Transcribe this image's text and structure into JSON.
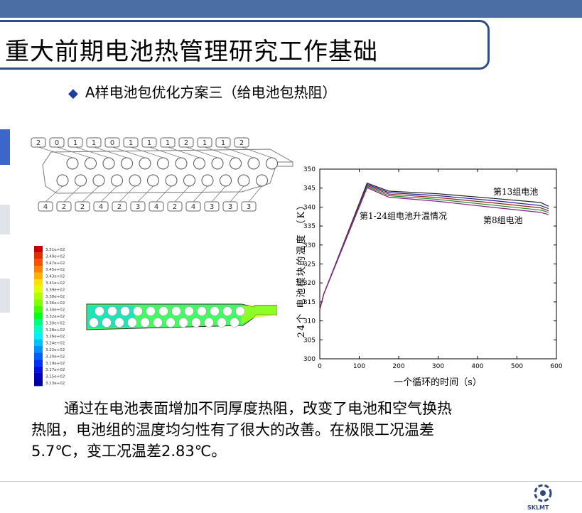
{
  "slide": {
    "title": "重大前期电池热管理研究工作基础",
    "subtitle": "A样电池包优化方案三（给电池包热阻）",
    "body_line1": "通过在电池表面增加不同厚度热阻，改变了电池和空气换热",
    "body_line2": "热阻，电池组的温度均匀性有了很大的改善。在极限工况温差",
    "body_line3": "5.7℃，变工况温差2.83℃。",
    "logo_text": "SKLMT"
  },
  "diagram": {
    "top_labels": [
      "2",
      "0",
      "1",
      "1",
      "0",
      "1",
      "1",
      "1",
      "2",
      "1",
      "1",
      "2"
    ],
    "bottom_labels": [
      "4",
      "2",
      "2",
      "4",
      "2",
      "3",
      "4",
      "2",
      "4",
      "3",
      "3",
      "3"
    ]
  },
  "colorbar": {
    "labels": [
      "3.51e+02",
      "3.49e+02",
      "3.47e+02",
      "3.45e+02",
      "3.43e+02",
      "3.41e+02",
      "3.39e+02",
      "3.38e+02",
      "3.36e+02",
      "3.34e+02",
      "3.32e+02",
      "3.30e+02",
      "3.28e+02",
      "3.26e+02",
      "3.24e+02",
      "3.22e+02",
      "3.20e+02",
      "3.19e+02",
      "3.17e+02",
      "3.15e+02",
      "3.13e+02"
    ],
    "colors": [
      "#c80000",
      "#e03000",
      "#ff5000",
      "#ff8000",
      "#ffb000",
      "#ffe000",
      "#e0ff00",
      "#b0ff00",
      "#80ff00",
      "#40ff00",
      "#00ff20",
      "#00ff80",
      "#00ffc0",
      "#00f0ff",
      "#00c0ff",
      "#0090ff",
      "#0060ff",
      "#0030ff",
      "#0010e0",
      "#0000c0",
      "#0000a0"
    ]
  },
  "chart_data": {
    "type": "line",
    "xlabel": "一个循环的时间（s）",
    "ylabel": "24个 电池模块的温度 （K）",
    "xlim": [
      0,
      600
    ],
    "ylim": [
      300,
      350
    ],
    "xticks": [
      0,
      100,
      200,
      300,
      400,
      500,
      600
    ],
    "yticks": [
      300,
      305,
      310,
      315,
      320,
      325,
      330,
      335,
      340,
      345,
      350
    ],
    "annotations": [
      "第13组电池",
      "第1-24组电池升温情况",
      "第8组电池"
    ],
    "series_colors": [
      "#202020",
      "#1a1aa0",
      "#a01a1a",
      "#1a8a1a",
      "#8a1a8a"
    ],
    "series": [
      {
        "x": [
          0,
          10,
          120,
          175,
          300,
          450,
          560,
          580
        ],
        "y": [
          313,
          317,
          346.3,
          344.2,
          343.5,
          342.2,
          341.2,
          340.2
        ]
      },
      {
        "x": [
          0,
          10,
          120,
          175,
          300,
          450,
          560,
          580
        ],
        "y": [
          313,
          317,
          346.0,
          343.8,
          343.0,
          341.6,
          340.4,
          339.6
        ]
      },
      {
        "x": [
          0,
          10,
          120,
          175,
          300,
          450,
          560,
          580
        ],
        "y": [
          313,
          317,
          345.7,
          343.4,
          342.5,
          341.0,
          339.8,
          339.0
        ]
      },
      {
        "x": [
          0,
          10,
          120,
          175,
          300,
          450,
          560,
          580
        ],
        "y": [
          313,
          317,
          345.4,
          343.0,
          342.0,
          340.4,
          339.2,
          338.6
        ]
      },
      {
        "x": [
          0,
          10,
          120,
          175,
          300,
          450,
          560,
          580
        ],
        "y": [
          313,
          317,
          345.1,
          342.6,
          341.5,
          339.8,
          338.6,
          338.0
        ]
      }
    ]
  }
}
